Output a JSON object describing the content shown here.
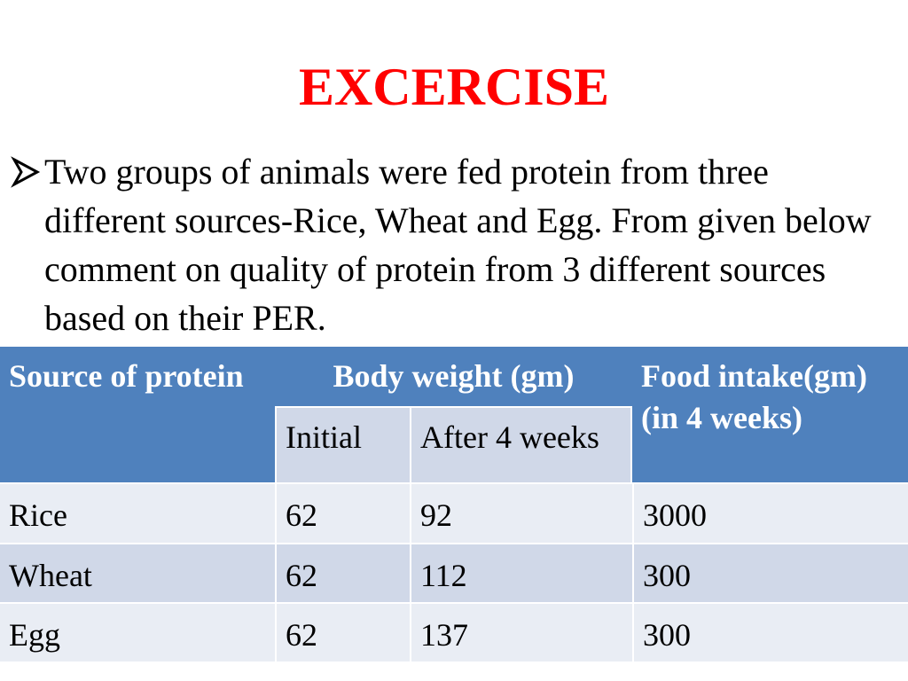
{
  "title": "EXCERCISE",
  "bullet": {
    "icon": "arrowhead-bullet-icon",
    "text": "Two groups of animals were fed protein from three different sources-Rice, Wheat and Egg. From given below comment on quality of protein from 3 different sources based on their PER."
  },
  "table": {
    "headers": {
      "source": "Source of protein",
      "body_weight": "Body weight (gm)",
      "food_intake": "Food intake(gm) (in 4 weeks)",
      "initial": "Initial",
      "after": "After 4 weeks"
    },
    "rows": [
      {
        "source": "Rice",
        "initial": "62",
        "after": "92",
        "food": "3000"
      },
      {
        "source": "Wheat",
        "initial": "62",
        "after": "112",
        "food": "300"
      },
      {
        "source": "Egg",
        "initial": "62",
        "after": "137",
        "food": "300"
      }
    ]
  },
  "colors": {
    "title": "#ff0000",
    "header_bg": "#4f81bd",
    "subheader_bg": "#d0d8e8",
    "row_light": "#e9edf4",
    "row_dark": "#d0d8e8"
  }
}
